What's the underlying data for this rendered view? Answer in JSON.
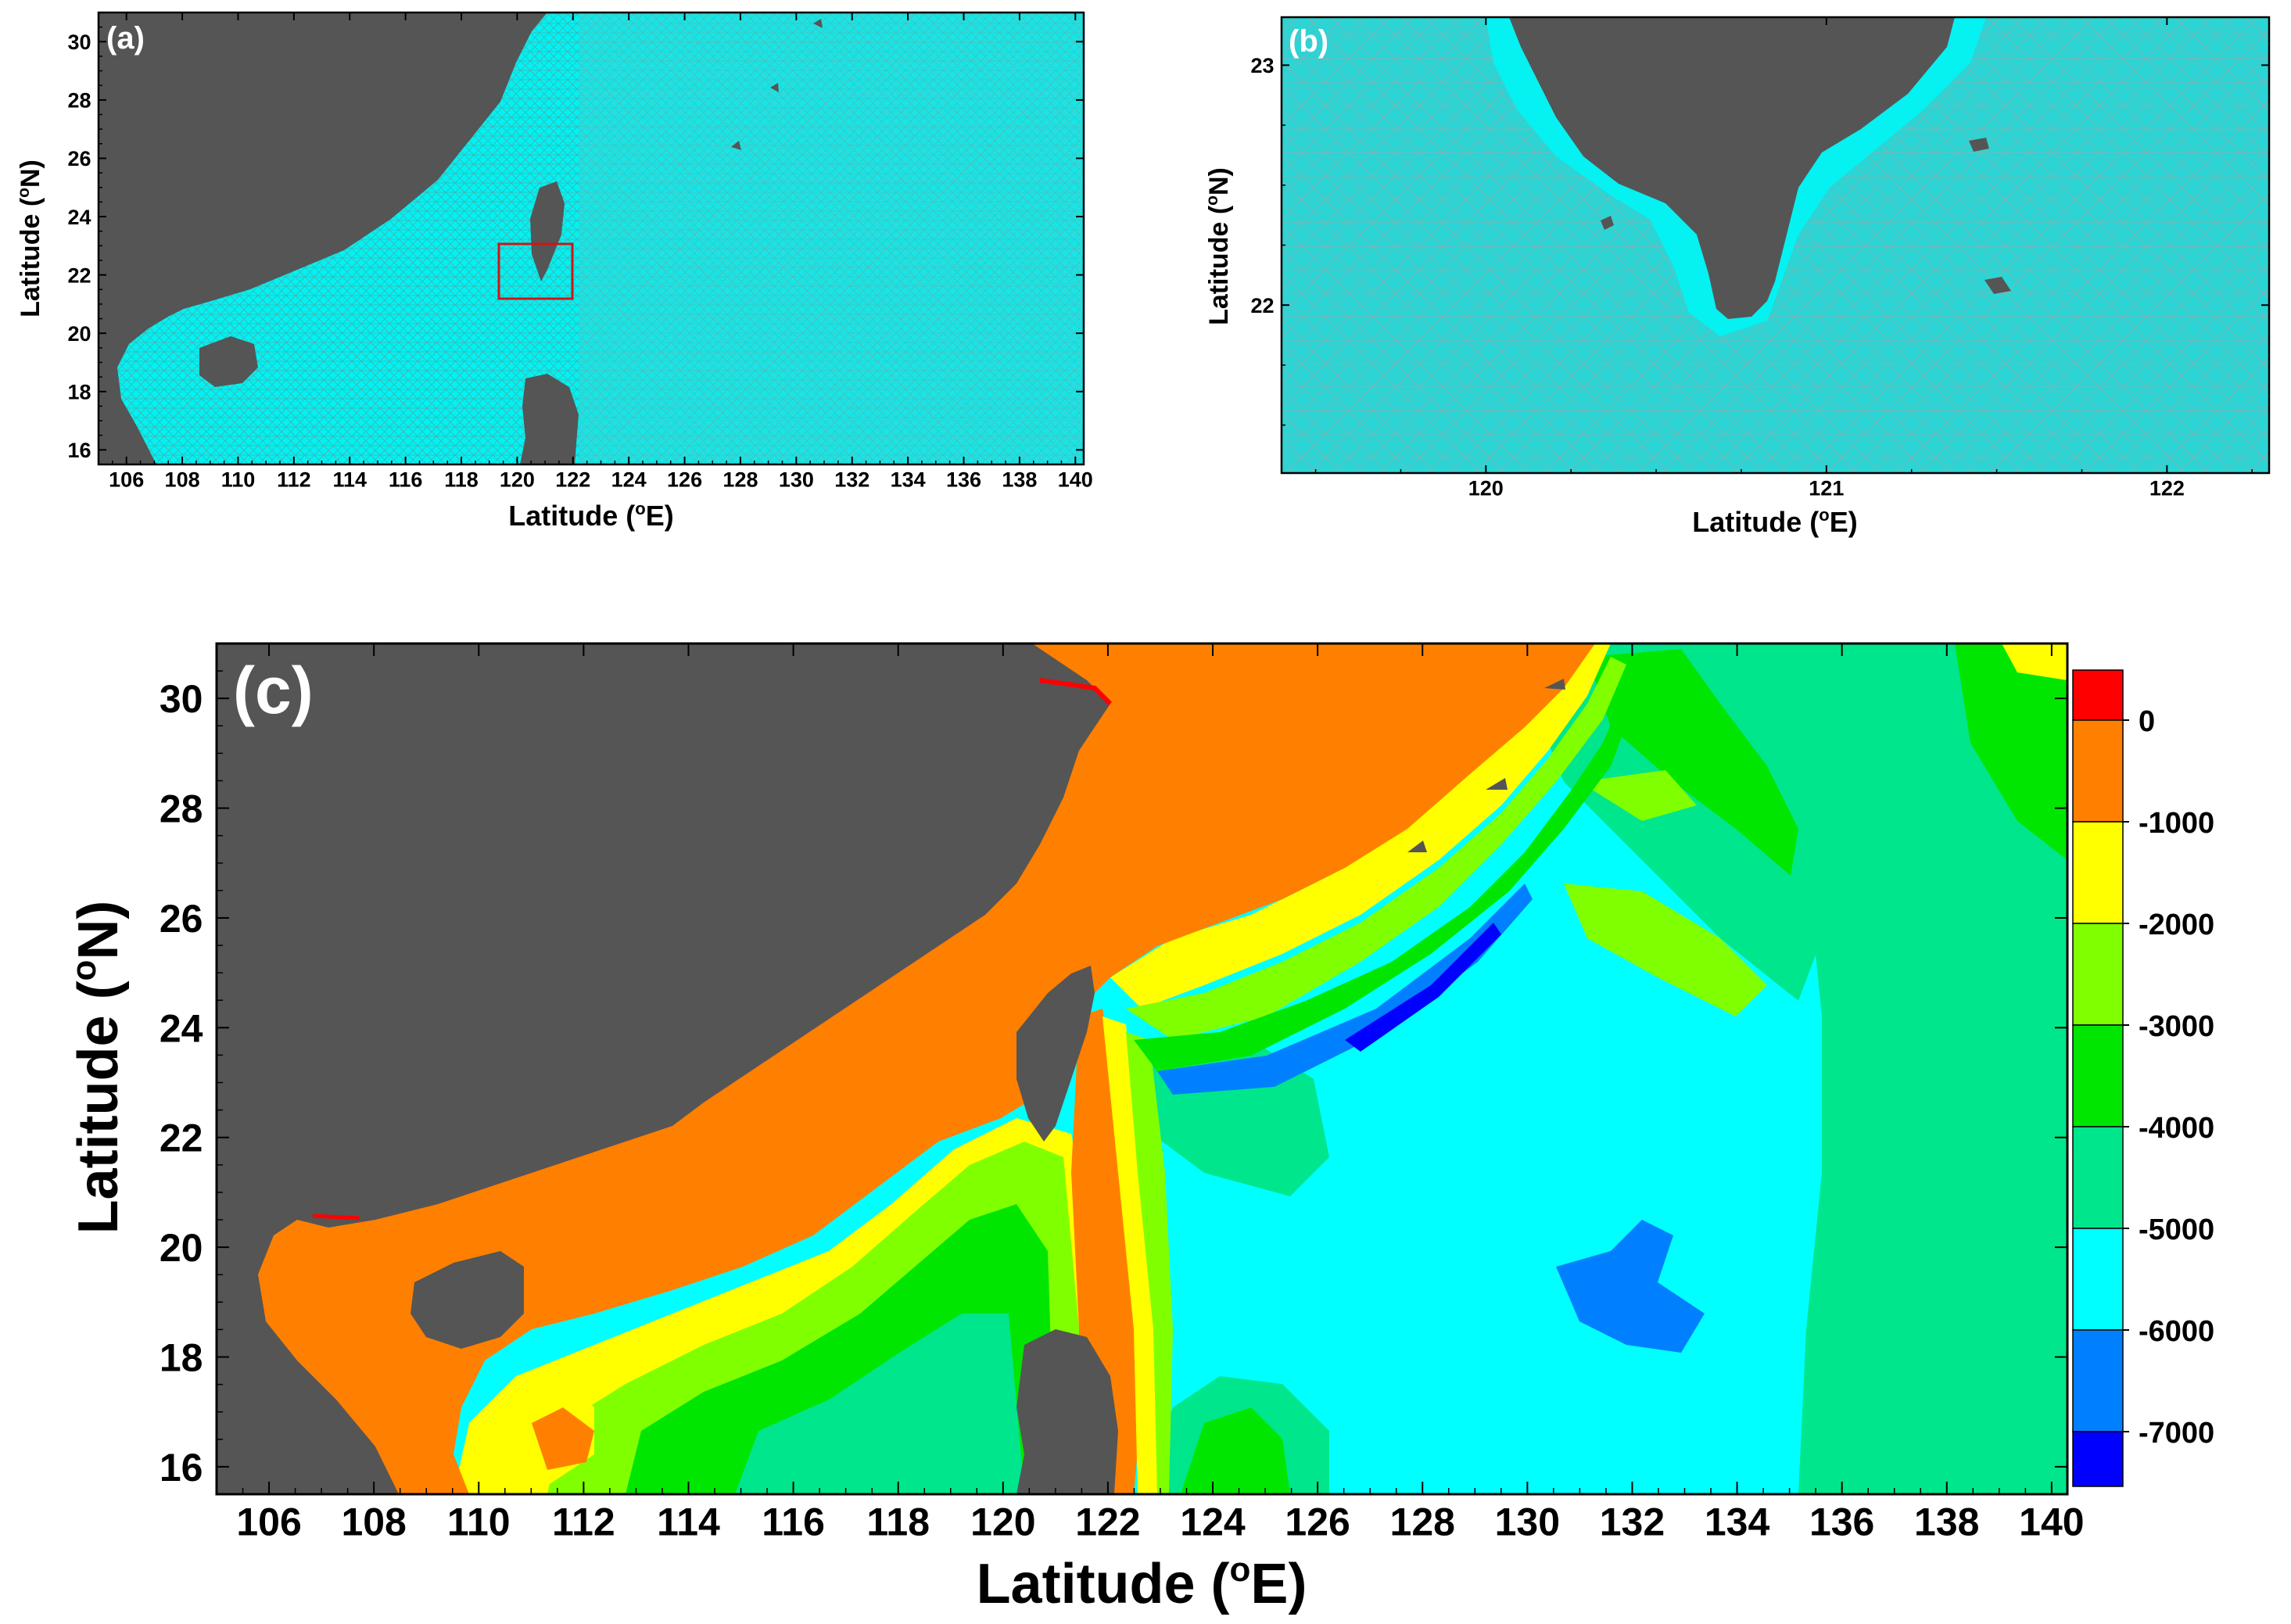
{
  "panels": {
    "a": {
      "label": "(a)",
      "xlabel_text": "Latitude (",
      "xlabel_deg": "o",
      "xlabel_unit": "E)",
      "ylabel_text": "Latitude (",
      "ylabel_deg": "o",
      "ylabel_unit": "N)",
      "xticks": [
        "106",
        "108",
        "110",
        "112",
        "114",
        "116",
        "118",
        "120",
        "122",
        "124",
        "126",
        "128",
        "130",
        "132",
        "134",
        "136",
        "138",
        "140"
      ],
      "yticks": [
        "16",
        "18",
        "20",
        "22",
        "24",
        "26",
        "28",
        "30"
      ],
      "xrange": [
        105,
        140.3
      ],
      "yrange": [
        15.5,
        31
      ],
      "highlight_box": {
        "lon": [
          119.4,
          122.3
        ],
        "lat": [
          21.3,
          23.2
        ],
        "color": "#d21414"
      }
    },
    "b": {
      "label": "(b)",
      "xlabel_text": "Latitude (",
      "xlabel_deg": "o",
      "xlabel_unit": "E)",
      "ylabel_text": "Latitude (",
      "ylabel_deg": "o",
      "ylabel_unit": "N)",
      "xticks": [
        "120",
        "121",
        "122"
      ],
      "yticks": [
        "22",
        "23"
      ],
      "xrange": [
        119.4,
        122.3
      ],
      "yrange": [
        21.3,
        23.2
      ]
    },
    "c": {
      "label": "(c)",
      "xlabel_text": "Latitude (",
      "xlabel_deg": "o",
      "xlabel_unit": "E)",
      "ylabel_text": "Latitude (",
      "ylabel_deg": "o",
      "ylabel_unit": "N)",
      "xticks": [
        "106",
        "108",
        "110",
        "112",
        "114",
        "116",
        "118",
        "120",
        "122",
        "124",
        "126",
        "128",
        "130",
        "132",
        "134",
        "136",
        "138",
        "140"
      ],
      "yticks": [
        "16",
        "18",
        "20",
        "22",
        "24",
        "26",
        "28",
        "30"
      ],
      "xrange": [
        105,
        140.3
      ],
      "yrange": [
        15.5,
        31
      ]
    }
  },
  "colorbar": {
    "labels": [
      "0",
      "-1000",
      "-2000",
      "-3000",
      "-4000",
      "-5000",
      "-6000",
      "-7000"
    ],
    "colors": [
      "#ff0000",
      "#ff8000",
      "#ffff00",
      "#80ff00",
      "#00e600",
      "#00e68c",
      "#00ffff",
      "#0080ff",
      "#0000ff"
    ]
  },
  "colors": {
    "land": "#555555",
    "mesh_sea": "#00ffff",
    "mesh_line": "#3fa8a8"
  }
}
